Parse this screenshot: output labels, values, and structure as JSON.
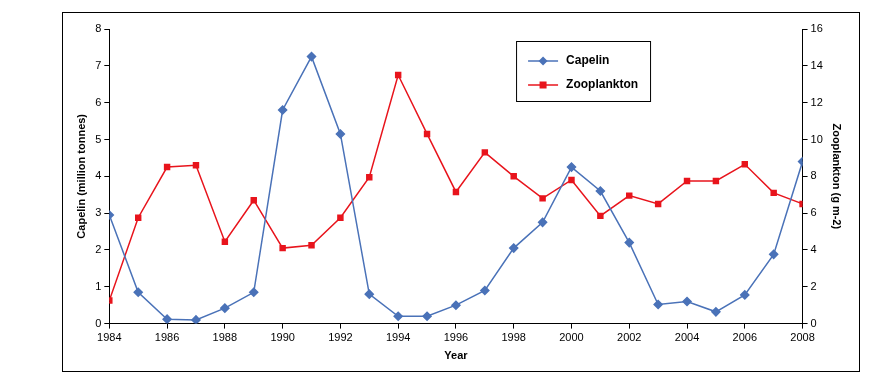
{
  "chart_data": {
    "type": "line",
    "x_label": "Year",
    "y_label": "Capelin (million tonnes)",
    "y2_label": "Zooplankton (g m-2)",
    "x": [
      1984,
      1985,
      1986,
      1987,
      1988,
      1989,
      1990,
      1991,
      1992,
      1993,
      1994,
      1995,
      1996,
      1997,
      1998,
      1999,
      2000,
      2001,
      2002,
      2003,
      2004,
      2005,
      2006,
      2007,
      2008
    ],
    "series": [
      {
        "name": "Capelin",
        "color": "#4a72b8",
        "marker": "diamond",
        "line_style": "solid",
        "values": [
          2.95,
          0.85,
          0.12,
          0.1,
          0.42,
          0.85,
          5.8,
          7.25,
          5.15,
          0.8,
          0.2,
          0.2,
          0.5,
          0.9,
          2.05,
          2.75,
          4.25,
          3.6,
          2.2,
          0.52,
          0.6,
          0.32,
          0.78,
          1.88,
          4.4
        ]
      },
      {
        "name": "Zooplankton",
        "color": "#e8141c",
        "marker": "square",
        "line_style": "solid",
        "axis": "y2",
        "values": [
          1.25,
          5.75,
          8.5,
          8.6,
          4.45,
          6.7,
          4.1,
          4.25,
          5.75,
          7.95,
          13.5,
          10.3,
          7.15,
          9.3,
          8.0,
          6.8,
          7.8,
          5.85,
          6.95,
          6.5,
          7.75,
          7.75,
          8.65,
          7.1,
          6.5
        ]
      }
    ],
    "xlim": [
      1984,
      2008
    ],
    "xticks": [
      1984,
      1986,
      1988,
      1990,
      1992,
      1994,
      1996,
      1998,
      2000,
      2002,
      2004,
      2006,
      2008
    ],
    "ylim": [
      0,
      8
    ],
    "yticks": [
      0,
      1,
      2,
      3,
      4,
      5,
      6,
      7,
      8
    ],
    "y2lim": [
      0,
      16
    ],
    "y2ticks": [
      0,
      2,
      4,
      6,
      8,
      10,
      12,
      14,
      16
    ],
    "grid": false,
    "legend": "upper right"
  }
}
